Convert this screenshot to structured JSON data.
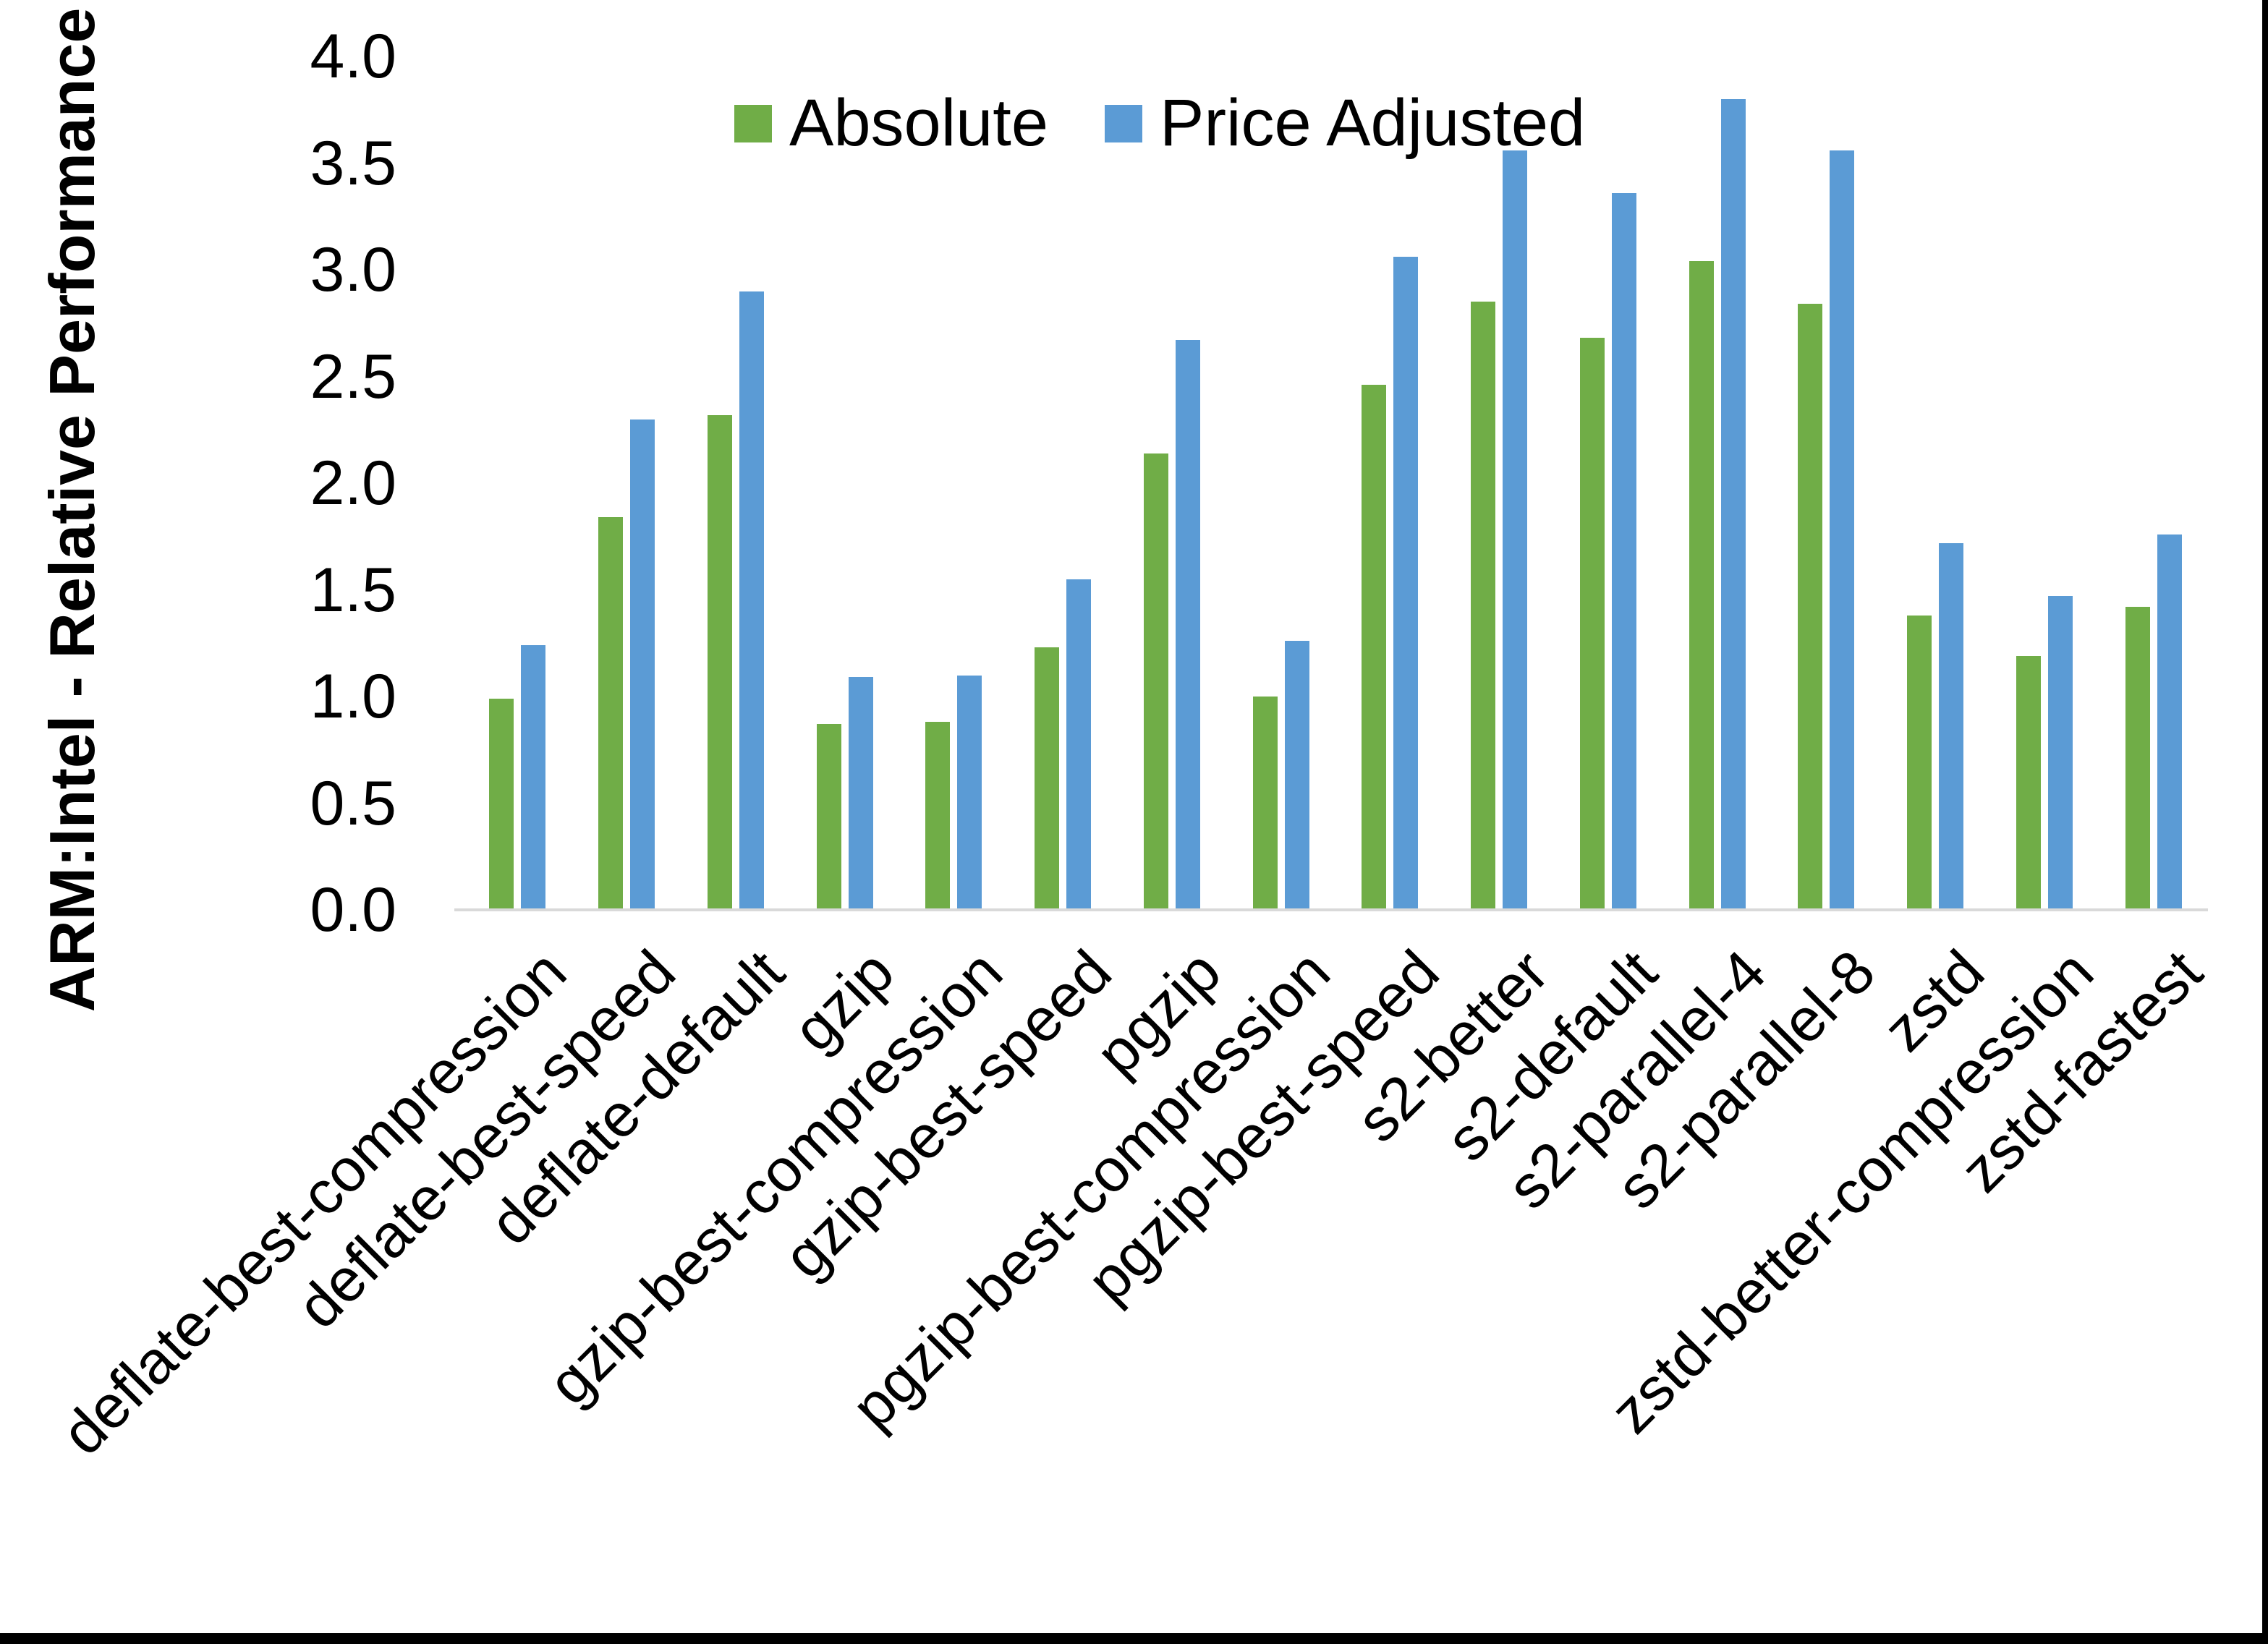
{
  "chart_data": {
    "type": "bar",
    "title": "",
    "xlabel": "",
    "ylabel": "ARM:Intel - Relative Performance",
    "ylim": [
      0.0,
      4.0
    ],
    "ytick_step": 0.5,
    "ytick_labels": [
      "0.0",
      "0.5",
      "1.0",
      "1.5",
      "2.0",
      "2.5",
      "3.0",
      "3.5",
      "4.0"
    ],
    "grid": false,
    "legend_position": "top-center",
    "categories": [
      "deflate-best-compression",
      "deflate-best-speed",
      "deflate-default",
      "gzip",
      "gzip-best-compression",
      "gzip-best-speed",
      "pgzip",
      "pgzip-best-compression",
      "pgzip-best-speed",
      "s2-better",
      "s2-default",
      "s2-parallel-4",
      "s2-parallel-8",
      "zstd",
      "zstd-better-compression",
      "zstd-fastest"
    ],
    "series": [
      {
        "name": "Absolute",
        "color": "#70AD47",
        "values": [
          0.99,
          1.84,
          2.32,
          0.87,
          0.88,
          1.23,
          2.14,
          1.0,
          2.46,
          2.85,
          2.68,
          3.04,
          2.84,
          1.38,
          1.19,
          1.42
        ]
      },
      {
        "name": "Price Adjusted",
        "color": "#5B9BD5",
        "values": [
          1.24,
          2.3,
          2.9,
          1.09,
          1.1,
          1.55,
          2.67,
          1.26,
          3.06,
          3.56,
          3.36,
          3.8,
          3.56,
          1.72,
          1.47,
          1.76
        ]
      }
    ]
  },
  "colors": {
    "background": "#FFFFFF",
    "axis_line": "#D9D9D9",
    "text": "#000000",
    "frame": "#000000"
  }
}
